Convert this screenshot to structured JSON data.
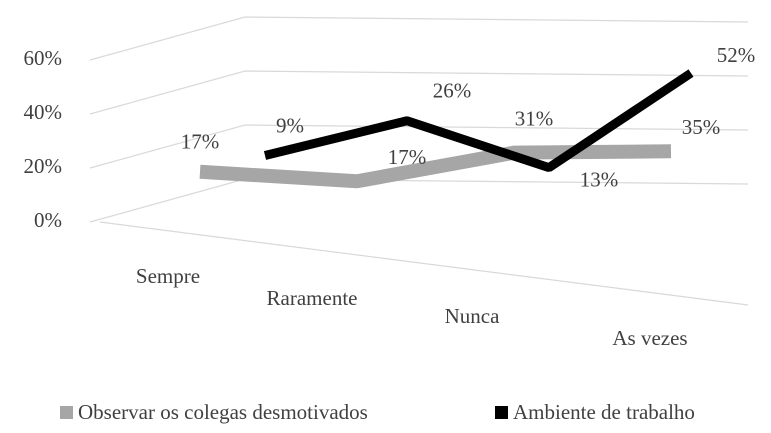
{
  "chart_data": {
    "type": "line3d",
    "categories": [
      "Sempre",
      "Raramente",
      "Nunca",
      "As vezes"
    ],
    "series": [
      {
        "name": "Observar os colegas desmotivados",
        "color": "#a6a6a6",
        "values": [
          17,
          17,
          31,
          35
        ],
        "value_labels": [
          "17%",
          "17%",
          "31%",
          "35%"
        ]
      },
      {
        "name": "Ambiente de trabalho",
        "color": "#000000",
        "values": [
          9,
          26,
          13,
          52
        ],
        "value_labels": [
          "9%",
          "26%",
          "13%",
          "52%"
        ]
      }
    ],
    "ylim": [
      0,
      60
    ],
    "yticks": [
      {
        "value": 0,
        "label": "0%"
      },
      {
        "value": 20,
        "label": "20%"
      },
      {
        "value": 40,
        "label": "40%"
      },
      {
        "value": 60,
        "label": "60%"
      }
    ],
    "grid": true,
    "legend": "bottom"
  }
}
